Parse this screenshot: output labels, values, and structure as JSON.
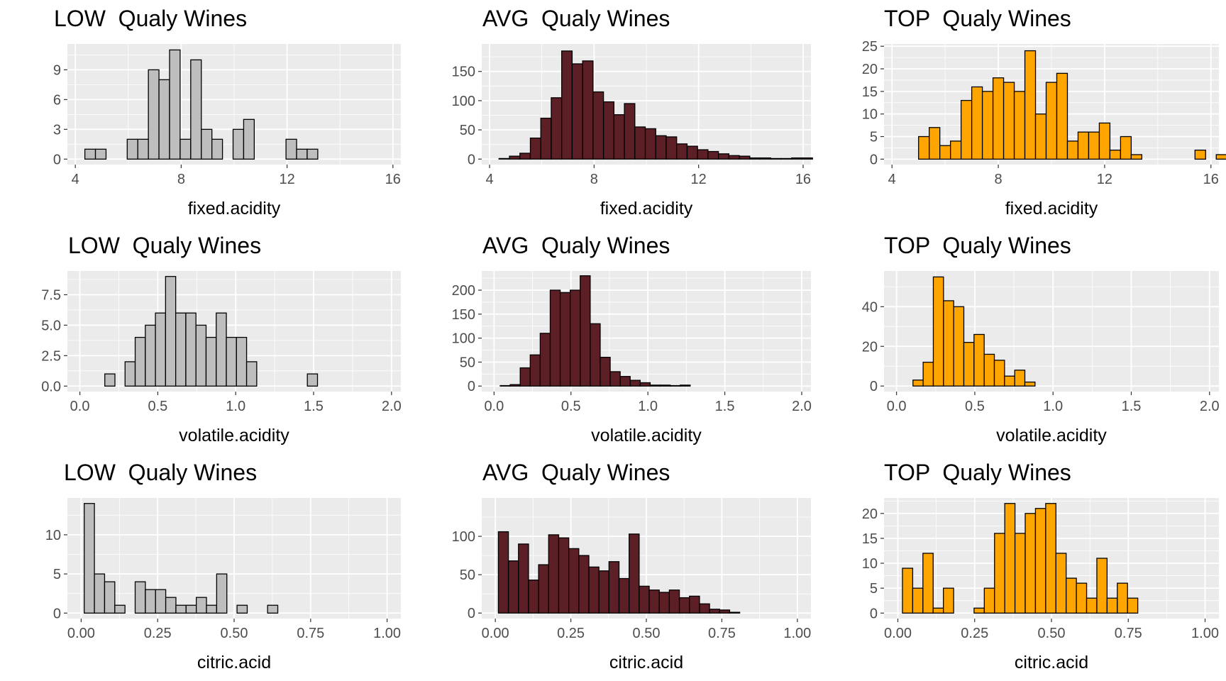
{
  "colors": {
    "low": "#bebebe",
    "avg": "#5c1f26",
    "top": "#ffa500",
    "panel_background": "#ebebeb",
    "grid": "#ffffff",
    "bar_outline": "#000000"
  },
  "chart_data": [
    {
      "type": "bar",
      "title": "LOW  Qualy Wines",
      "xlabel": "fixed.acidity",
      "color": "low",
      "grid": true,
      "xlim": [
        3.7,
        16.3
      ],
      "ylim": [
        -0.55,
        11.6
      ],
      "x_ticks": [
        {
          "v": 4,
          "label": "4"
        },
        {
          "v": 8,
          "label": "8"
        },
        {
          "v": 12,
          "label": "12"
        },
        {
          "v": 16,
          "label": "16"
        }
      ],
      "y_ticks": [
        {
          "v": 0,
          "label": "0"
        },
        {
          "v": 3,
          "label": "3"
        },
        {
          "v": 6,
          "label": "6"
        },
        {
          "v": 9,
          "label": "9"
        }
      ],
      "bin_start": 4.36,
      "bin_width": 0.4,
      "values": [
        1,
        1,
        0,
        0,
        2,
        2,
        9,
        8,
        11,
        2,
        10,
        3,
        2,
        0,
        3,
        4,
        0,
        0,
        0,
        2,
        1,
        1,
        0,
        0,
        0,
        0,
        0,
        0,
        0,
        0
      ]
    },
    {
      "type": "bar",
      "title": "AVG  Qualy Wines",
      "xlabel": "fixed.acidity",
      "color": "avg",
      "grid": true,
      "xlim": [
        3.7,
        16.3
      ],
      "ylim": [
        -9.4,
        197
      ],
      "x_ticks": [
        {
          "v": 4,
          "label": "4"
        },
        {
          "v": 8,
          "label": "8"
        },
        {
          "v": 12,
          "label": "12"
        },
        {
          "v": 16,
          "label": "16"
        }
      ],
      "y_ticks": [
        {
          "v": 0,
          "label": "0"
        },
        {
          "v": 50,
          "label": "50"
        },
        {
          "v": 100,
          "label": "100"
        },
        {
          "v": 150,
          "label": "150"
        }
      ],
      "bin_start": 4.36,
      "bin_width": 0.4,
      "values": [
        1,
        5,
        10,
        36,
        70,
        105,
        185,
        163,
        168,
        115,
        98,
        76,
        95,
        55,
        52,
        40,
        38,
        26,
        22,
        16,
        13,
        9,
        6,
        5,
        2,
        2,
        1,
        1,
        2,
        2
      ]
    },
    {
      "type": "bar",
      "title": "TOP  Qualy Wines",
      "xlabel": "fixed.acidity",
      "color": "top",
      "grid": true,
      "xlim": [
        3.7,
        16.3
      ],
      "ylim": [
        -1.2,
        25.5
      ],
      "x_ticks": [
        {
          "v": 4,
          "label": "4"
        },
        {
          "v": 8,
          "label": "8"
        },
        {
          "v": 12,
          "label": "12"
        },
        {
          "v": 16,
          "label": "16"
        }
      ],
      "y_ticks": [
        {
          "v": 0,
          "label": "0"
        },
        {
          "v": 5,
          "label": "5"
        },
        {
          "v": 10,
          "label": "10"
        },
        {
          "v": 15,
          "label": "15"
        },
        {
          "v": 20,
          "label": "20"
        },
        {
          "v": 25,
          "label": "25"
        }
      ],
      "bin_start": 4.6,
      "bin_width": 0.4,
      "values": [
        0,
        5,
        7,
        3,
        4,
        13,
        16,
        15,
        18,
        17,
        15,
        24,
        10,
        17,
        19,
        4,
        6,
        6,
        8,
        2,
        5,
        1,
        0,
        0,
        0,
        0,
        0,
        2,
        0,
        1
      ]
    },
    {
      "type": "bar",
      "title": "LOW  Qualy Wines",
      "xlabel": "volatile.acidity",
      "color": "low",
      "grid": true,
      "xlim": [
        -0.08,
        2.06
      ],
      "ylim": [
        -0.45,
        9.45
      ],
      "x_ticks": [
        {
          "v": 0,
          "label": "0.0"
        },
        {
          "v": 0.5,
          "label": "0.5"
        },
        {
          "v": 1.0,
          "label": "1.0"
        },
        {
          "v": 1.5,
          "label": "1.5"
        },
        {
          "v": 2.0,
          "label": "2.0"
        }
      ],
      "y_ticks": [
        {
          "v": 0,
          "label": "0.0"
        },
        {
          "v": 2.5,
          "label": "2.5"
        },
        {
          "v": 5.0,
          "label": "5.0"
        },
        {
          "v": 7.5,
          "label": "7.5"
        }
      ],
      "bin_start": 0.03,
      "bin_width": 0.065,
      "values": [
        0,
        0,
        1,
        0,
        2,
        4,
        5,
        6,
        9,
        6,
        6,
        5,
        4,
        6,
        4,
        4,
        2,
        0,
        0,
        0,
        0,
        0,
        1,
        0,
        0,
        0,
        0,
        0,
        0,
        0
      ]
    },
    {
      "type": "bar",
      "title": "AVG  Qualy Wines",
      "xlabel": "volatile.acidity",
      "color": "avg",
      "grid": true,
      "xlim": [
        -0.08,
        2.06
      ],
      "ylim": [
        -11.5,
        240
      ],
      "x_ticks": [
        {
          "v": 0,
          "label": "0.0"
        },
        {
          "v": 0.5,
          "label": "0.5"
        },
        {
          "v": 1.0,
          "label": "1.0"
        },
        {
          "v": 1.5,
          "label": "1.5"
        },
        {
          "v": 2.0,
          "label": "2.0"
        }
      ],
      "y_ticks": [
        {
          "v": 0,
          "label": "0"
        },
        {
          "v": 50,
          "label": "50"
        },
        {
          "v": 100,
          "label": "100"
        },
        {
          "v": 150,
          "label": "150"
        },
        {
          "v": 200,
          "label": "200"
        }
      ],
      "bin_start": 0.04,
      "bin_width": 0.065,
      "values": [
        1,
        3,
        38,
        65,
        110,
        200,
        195,
        200,
        230,
        130,
        60,
        30,
        20,
        12,
        7,
        2,
        2,
        1,
        2,
        0,
        0,
        0,
        0,
        0,
        0,
        0,
        0,
        0,
        0,
        0
      ]
    },
    {
      "type": "bar",
      "title": "TOP  Qualy Wines",
      "xlabel": "volatile.acidity",
      "color": "top",
      "grid": true,
      "xlim": [
        -0.08,
        2.06
      ],
      "ylim": [
        -2.8,
        58
      ],
      "x_ticks": [
        {
          "v": 0,
          "label": "0.0"
        },
        {
          "v": 0.5,
          "label": "0.5"
        },
        {
          "v": 1.0,
          "label": "1.0"
        },
        {
          "v": 1.5,
          "label": "1.5"
        },
        {
          "v": 2.0,
          "label": "2.0"
        }
      ],
      "y_ticks": [
        {
          "v": 0,
          "label": "0"
        },
        {
          "v": 20,
          "label": "20"
        },
        {
          "v": 40,
          "label": "40"
        }
      ],
      "bin_start": 0.04,
      "bin_width": 0.065,
      "values": [
        0,
        3,
        12,
        55,
        43,
        40,
        22,
        26,
        16,
        13,
        5,
        8,
        2,
        0,
        0,
        0,
        0,
        0,
        0,
        0,
        0,
        0,
        0,
        0,
        0,
        0,
        0,
        0,
        0,
        0
      ]
    },
    {
      "type": "bar",
      "title": "LOW  Qualy Wines",
      "xlabel": "citric.acid",
      "color": "low",
      "grid": true,
      "xlim": [
        -0.045,
        1.045
      ],
      "ylim": [
        -0.7,
        14.7
      ],
      "x_ticks": [
        {
          "v": 0,
          "label": "0.00"
        },
        {
          "v": 0.25,
          "label": "0.25"
        },
        {
          "v": 0.5,
          "label": "0.50"
        },
        {
          "v": 0.75,
          "label": "0.75"
        },
        {
          "v": 1.0,
          "label": "1.00"
        }
      ],
      "y_ticks": [
        {
          "v": 0,
          "label": "0"
        },
        {
          "v": 5,
          "label": "5"
        },
        {
          "v": 10,
          "label": "10"
        }
      ],
      "bin_start": 0.01,
      "bin_width": 0.0333,
      "values": [
        14,
        5,
        4,
        1,
        0,
        4,
        3,
        3,
        2,
        1,
        1,
        2,
        1,
        5,
        0,
        1,
        0,
        0,
        1,
        0,
        0,
        0,
        0,
        0,
        0,
        0,
        0,
        0,
        0,
        0
      ]
    },
    {
      "type": "bar",
      "title": "AVG  Qualy Wines",
      "xlabel": "citric.acid",
      "color": "avg",
      "grid": true,
      "xlim": [
        -0.045,
        1.045
      ],
      "ylim": [
        -7.2,
        150
      ],
      "x_ticks": [
        {
          "v": 0,
          "label": "0.00"
        },
        {
          "v": 0.25,
          "label": "0.25"
        },
        {
          "v": 0.5,
          "label": "0.50"
        },
        {
          "v": 0.75,
          "label": "0.75"
        },
        {
          "v": 1.0,
          "label": "1.00"
        }
      ],
      "y_ticks": [
        {
          "v": 0,
          "label": "0"
        },
        {
          "v": 50,
          "label": "50"
        },
        {
          "v": 100,
          "label": "100"
        }
      ],
      "bin_start": 0.01,
      "bin_width": 0.0333,
      "values": [
        106,
        68,
        90,
        43,
        63,
        102,
        98,
        84,
        75,
        60,
        55,
        67,
        45,
        103,
        35,
        30,
        27,
        30,
        20,
        22,
        12,
        5,
        4,
        1,
        0,
        0,
        0,
        0,
        0,
        0
      ]
    },
    {
      "type": "bar",
      "title": "TOP  Qualy Wines",
      "xlabel": "citric.acid",
      "color": "top",
      "grid": true,
      "xlim": [
        -0.045,
        1.045
      ],
      "ylim": [
        -1.1,
        23.1
      ],
      "x_ticks": [
        {
          "v": 0,
          "label": "0.00"
        },
        {
          "v": 0.25,
          "label": "0.25"
        },
        {
          "v": 0.5,
          "label": "0.50"
        },
        {
          "v": 0.75,
          "label": "0.75"
        },
        {
          "v": 1.0,
          "label": "1.00"
        }
      ],
      "y_ticks": [
        {
          "v": 0,
          "label": "0"
        },
        {
          "v": 5,
          "label": "5"
        },
        {
          "v": 10,
          "label": "10"
        },
        {
          "v": 15,
          "label": "15"
        },
        {
          "v": 20,
          "label": "20"
        }
      ],
      "bin_start": 0.015,
      "bin_width": 0.0333,
      "values": [
        9,
        5,
        12,
        1,
        5,
        0,
        0,
        1,
        5,
        16,
        22,
        16,
        20,
        21,
        22,
        12,
        7,
        6,
        3,
        11,
        3,
        6,
        3,
        0,
        0,
        0,
        0,
        0,
        0,
        0
      ]
    }
  ]
}
